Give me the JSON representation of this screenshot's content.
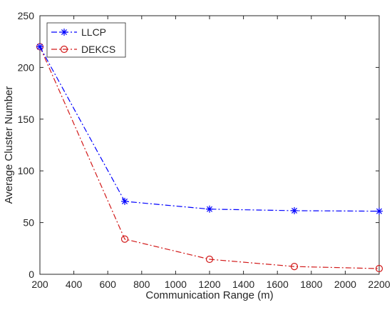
{
  "chart_data": {
    "type": "line",
    "title": "",
    "xlabel": "Communication Range (m)",
    "ylabel": "Average Cluster Number",
    "xlim": [
      200,
      2200
    ],
    "ylim": [
      0,
      250
    ],
    "xticks": [
      200,
      400,
      600,
      800,
      1000,
      1200,
      1400,
      1600,
      1800,
      2000,
      2200
    ],
    "yticks": [
      0,
      50,
      100,
      150,
      200,
      250
    ],
    "grid": false,
    "legend_position": "top-left",
    "series": [
      {
        "name": "LLCP",
        "x": [
          200,
          700,
          1200,
          1700,
          2200
        ],
        "values": [
          220,
          70.5,
          63,
          61.5,
          61
        ],
        "color": "#0000ff",
        "line_style": "dash-dot",
        "marker": "asterisk"
      },
      {
        "name": "DEKCS",
        "x": [
          200,
          700,
          1200,
          1700,
          2200
        ],
        "values": [
          220,
          34,
          14.5,
          7.5,
          5.5
        ],
        "color": "#d21a1a",
        "line_style": "dash-dot",
        "marker": "circle"
      }
    ]
  }
}
